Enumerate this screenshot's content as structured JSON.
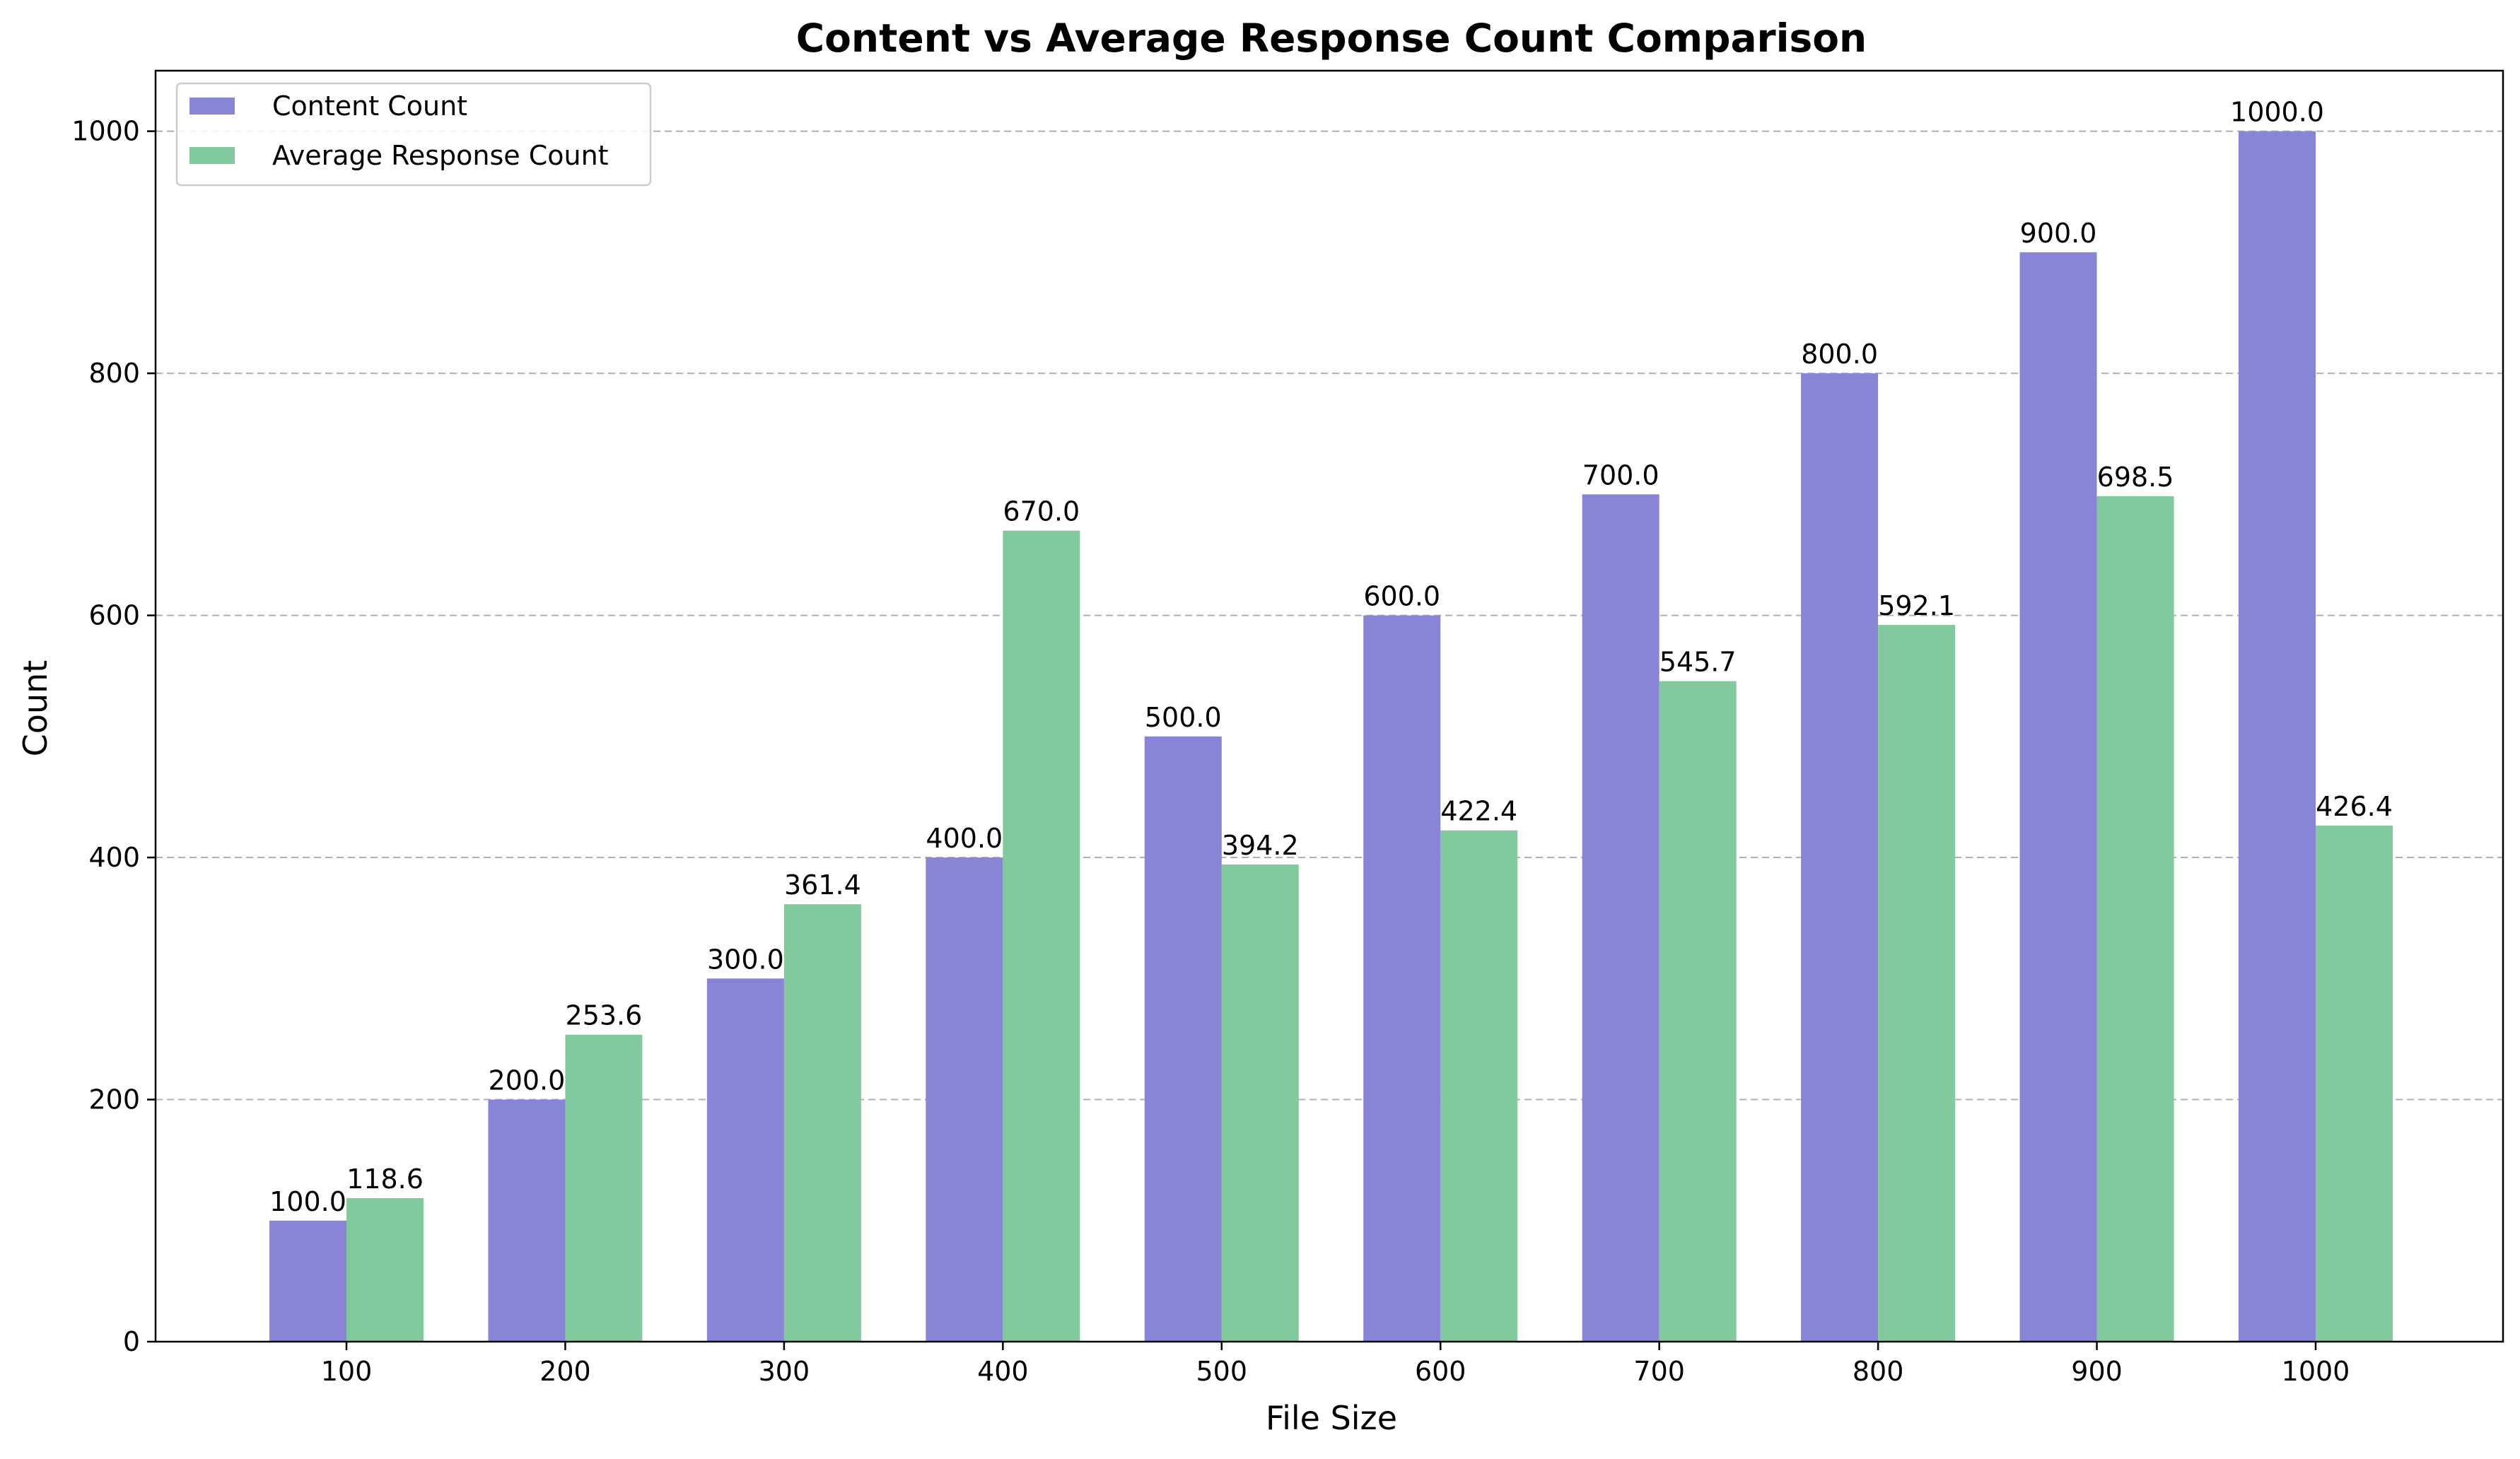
{
  "chart_data": {
    "type": "bar",
    "title": "Content vs Average Response Count Comparison",
    "xlabel": "File Size",
    "ylabel": "Count",
    "categories": [
      "100",
      "200",
      "300",
      "400",
      "500",
      "600",
      "700",
      "800",
      "900",
      "1000"
    ],
    "series": [
      {
        "name": "Content Count",
        "color": "#8884d8",
        "values": [
          100.0,
          200.0,
          300.0,
          400.0,
          500.0,
          600.0,
          700.0,
          800.0,
          900.0,
          1000.0
        ],
        "labels": [
          "100.0",
          "200.0",
          "300.0",
          "400.0",
          "500.0",
          "600.0",
          "700.0",
          "800.0",
          "900.0",
          "1000.0"
        ]
      },
      {
        "name": "Average Response Count",
        "color": "#82ca9d",
        "values": [
          118.6,
          253.6,
          361.4,
          670.0,
          394.2,
          422.4,
          545.7,
          592.1,
          698.5,
          426.4
        ],
        "labels": [
          "118.6",
          "253.6",
          "361.4",
          "670.0",
          "394.2",
          "422.4",
          "545.7",
          "592.1",
          "698.5",
          "426.4"
        ]
      }
    ],
    "ylim": [
      0,
      1050
    ],
    "yticks": [
      "0",
      "200",
      "400",
      "600",
      "800",
      "1000"
    ],
    "grid": "y-dashed",
    "legend_position": "upper-left"
  }
}
